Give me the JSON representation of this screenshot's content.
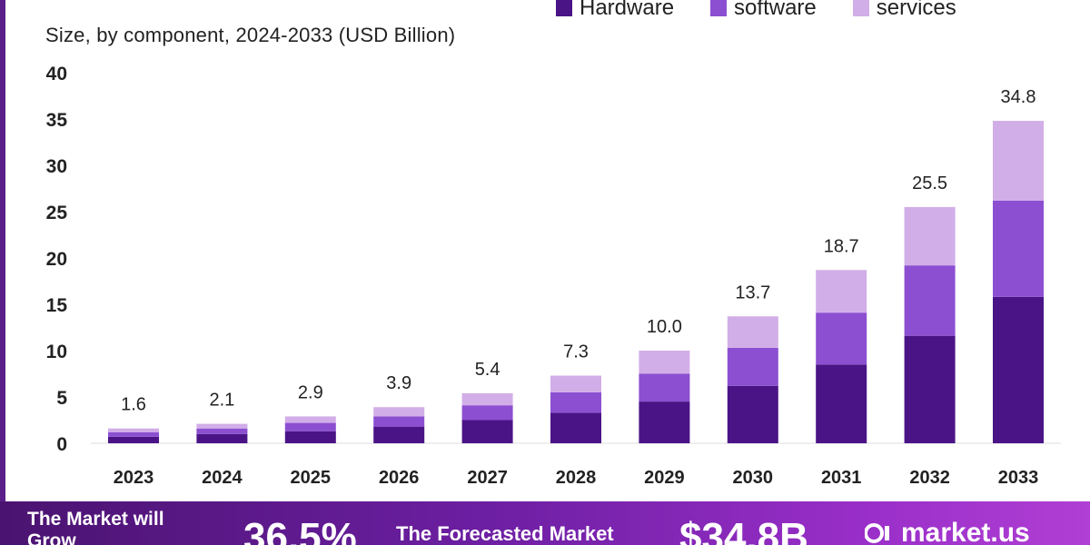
{
  "subtitle": "Size, by component, 2024-2033 (USD Billion)",
  "legend": [
    {
      "label": "Hardware",
      "color": "#4a1486"
    },
    {
      "label": "software",
      "color": "#8c4fd1"
    },
    {
      "label": "services",
      "color": "#d2aee8"
    }
  ],
  "footer": {
    "grow_text": "The Market will Grow",
    "cagr": "36.5%",
    "forecast_text": "The Forecasted Market",
    "value": "$34.8B",
    "logo_text": "market.us"
  },
  "chart_data": {
    "type": "bar",
    "stacked": true,
    "title": "",
    "xlabel": "",
    "ylabel": "",
    "ylim": [
      0,
      40
    ],
    "yticks": [
      0,
      5,
      10,
      15,
      20,
      25,
      30,
      35,
      40
    ],
    "categories": [
      "2023",
      "2024",
      "2025",
      "2026",
      "2027",
      "2028",
      "2029",
      "2030",
      "2031",
      "2032",
      "2033"
    ],
    "totals": [
      1.6,
      2.1,
      2.9,
      3.9,
      5.4,
      7.3,
      10.0,
      13.7,
      18.7,
      25.5,
      34.8
    ],
    "total_labels": [
      "1.6",
      "2.1",
      "2.9",
      "3.9",
      "5.4",
      "7.3",
      "10.0",
      "13.7",
      "18.7",
      "25.5",
      "34.8"
    ],
    "series": [
      {
        "name": "Hardware",
        "values": [
          0.7,
          1.0,
          1.3,
          1.8,
          2.5,
          3.3,
          4.5,
          6.2,
          8.5,
          11.6,
          15.8
        ]
      },
      {
        "name": "software",
        "values": [
          0.5,
          0.6,
          0.9,
          1.1,
          1.6,
          2.2,
          3.0,
          4.1,
          5.6,
          7.6,
          10.4
        ]
      },
      {
        "name": "services",
        "values": [
          0.4,
          0.5,
          0.7,
          1.0,
          1.3,
          1.8,
          2.5,
          3.4,
          4.6,
          6.3,
          8.6
        ]
      }
    ],
    "legend_position": "top-right",
    "grid": false
  }
}
